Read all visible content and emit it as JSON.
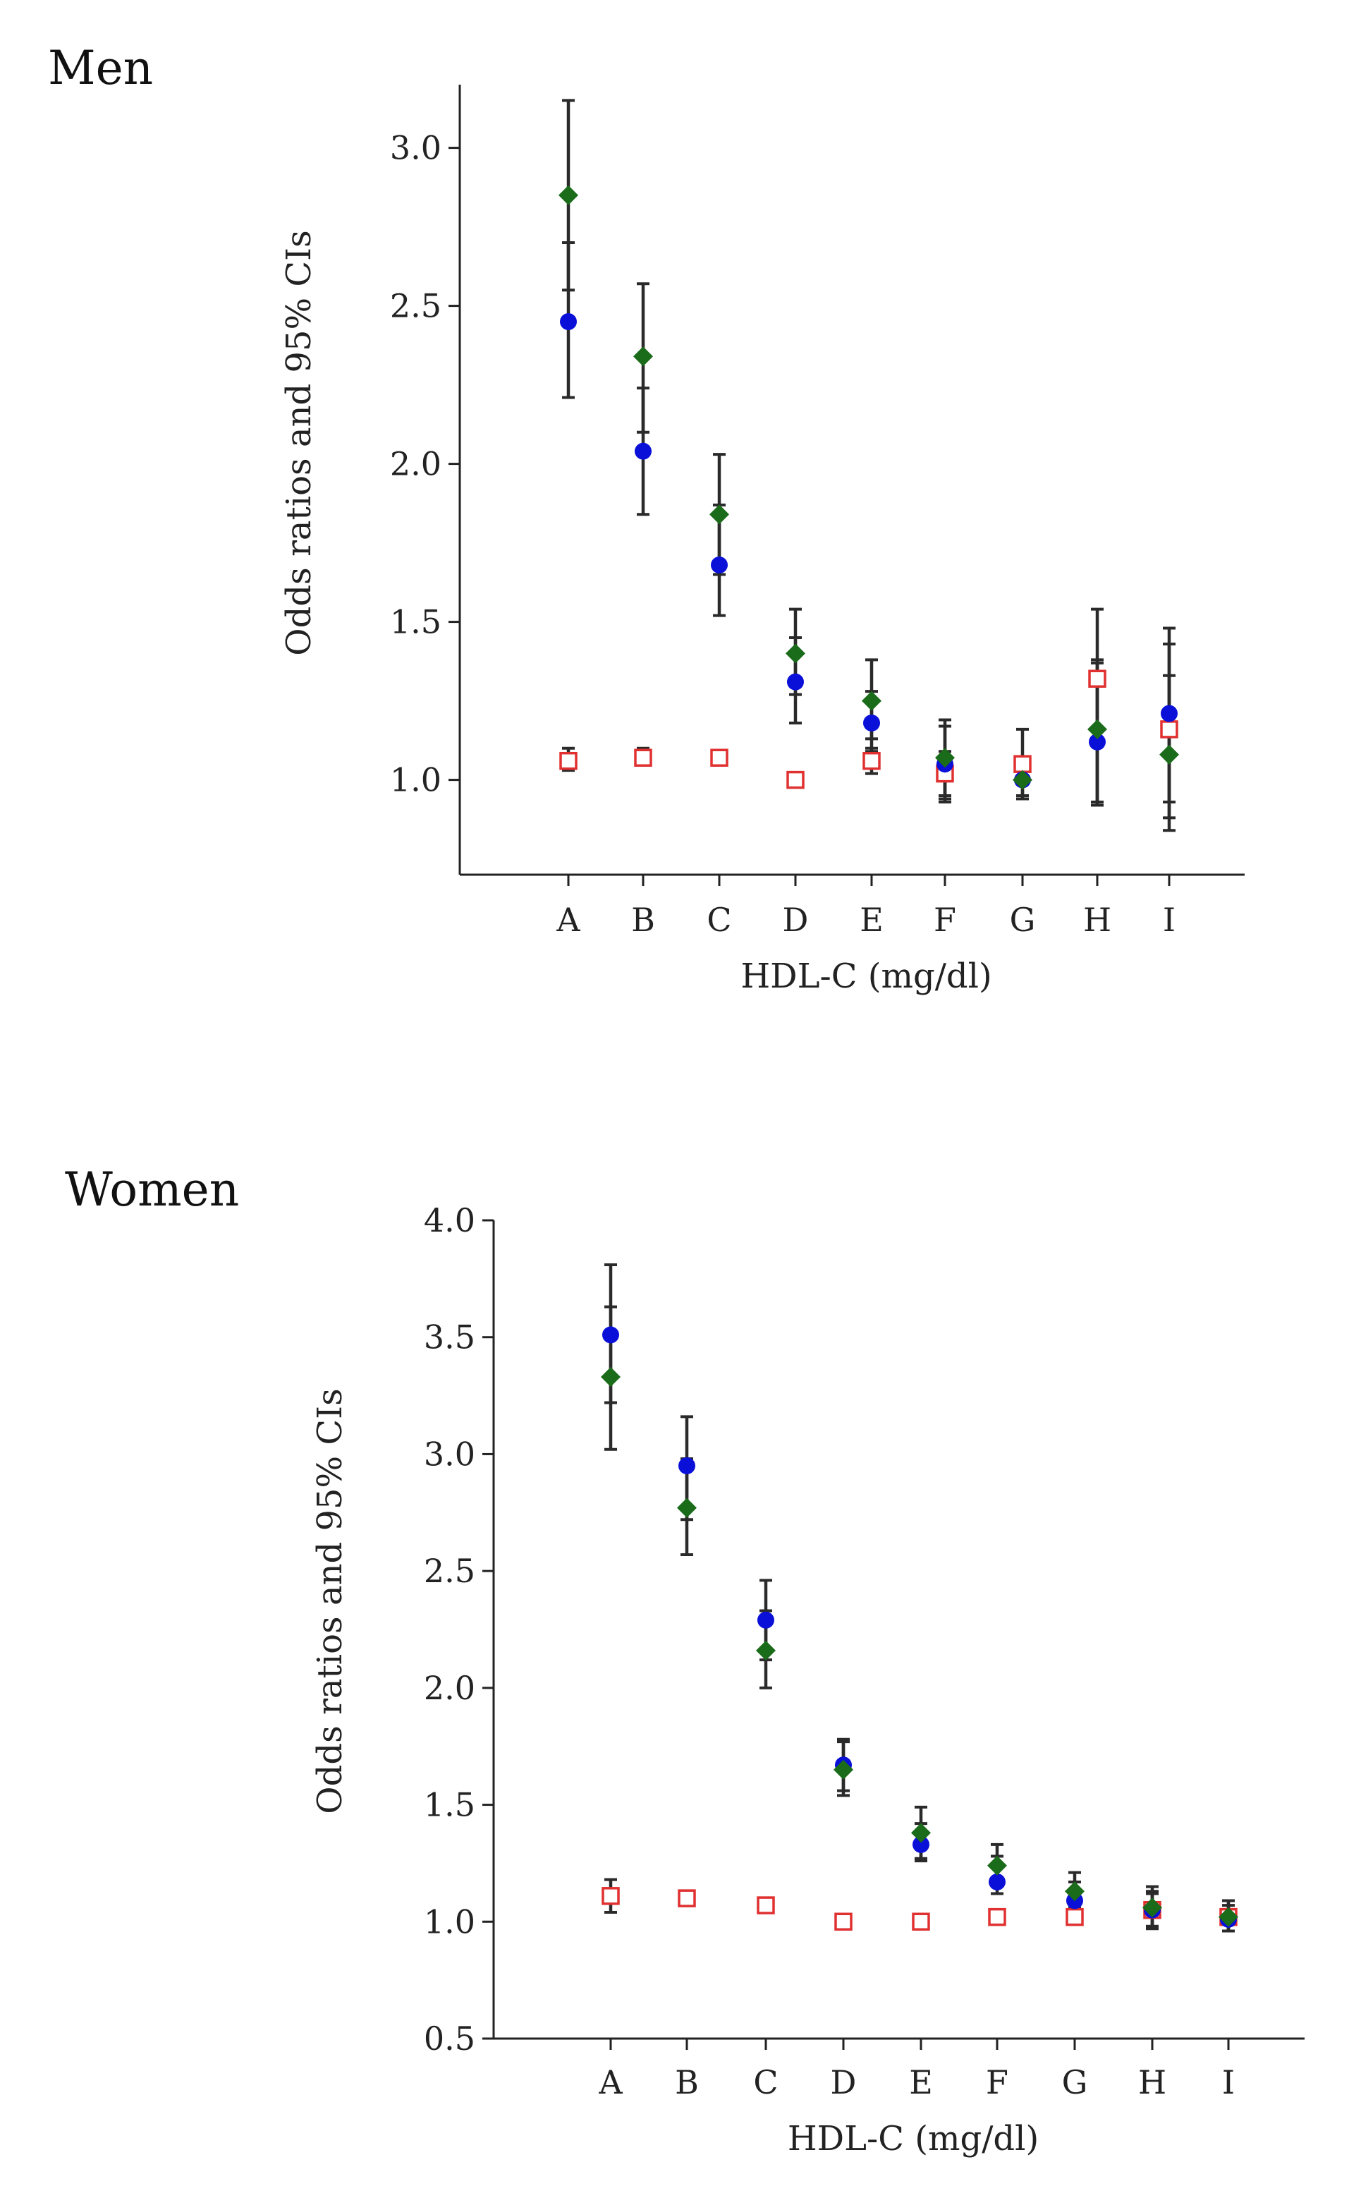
{
  "colors": {
    "series_circle": "#0a10d8",
    "series_diamond": "#1a6b1a",
    "series_square": "#e03030"
  },
  "chart_data": [
    {
      "type": "scatter",
      "title": "Men",
      "xlabel": "HDL-C (mg/dl)",
      "ylabel": "Odds ratios and 95% CIs",
      "categories": [
        "A",
        "B",
        "C",
        "D",
        "E",
        "F",
        "G",
        "H",
        "I"
      ],
      "ylim": [
        0.7,
        3.2
      ],
      "yticks": [
        "1.0",
        "1.5",
        "2.0",
        "2.5",
        "3.0"
      ],
      "series": [
        {
          "name": "circle",
          "marker": "circle",
          "values": [
            2.45,
            2.04,
            1.68,
            1.31,
            1.18,
            1.05,
            1.0,
            1.12,
            1.21
          ],
          "lower": [
            2.21,
            1.84,
            1.52,
            1.18,
            1.09,
            0.94,
            0.95,
            0.92,
            0.93
          ],
          "upper": [
            2.7,
            2.24,
            1.87,
            1.45,
            1.28,
            1.17,
            1.06,
            1.37,
            1.43
          ]
        },
        {
          "name": "diamond",
          "marker": "diamond",
          "values": [
            2.85,
            2.34,
            1.84,
            1.4,
            1.25,
            1.07,
            1.0,
            1.16,
            1.08
          ],
          "lower": [
            2.55,
            2.1,
            1.65,
            1.27,
            1.13,
            0.93,
            0.94,
            0.93,
            0.84
          ],
          "upper": [
            3.15,
            2.57,
            2.03,
            1.54,
            1.38,
            1.19,
            1.06,
            1.54,
            1.48
          ]
        },
        {
          "name": "square",
          "marker": "square",
          "values": [
            1.06,
            1.07,
            1.07,
            1.0,
            1.06,
            1.02,
            1.05,
            1.32,
            1.16
          ],
          "lower": [
            1.03,
            1.05,
            1.05,
            1.0,
            1.02,
            0.95,
            0.99,
            0.93,
            0.88
          ],
          "upper": [
            1.1,
            1.1,
            1.09,
            1.0,
            1.1,
            1.09,
            1.16,
            1.38,
            1.33
          ]
        }
      ]
    },
    {
      "type": "scatter",
      "title": "Women",
      "xlabel": "HDL-C (mg/dl)",
      "ylabel": "Odds ratios and 95% CIs",
      "categories": [
        "A",
        "B",
        "C",
        "D",
        "E",
        "F",
        "G",
        "H",
        "I"
      ],
      "ylim": [
        0.5,
        4.0
      ],
      "yticks": [
        "0.5",
        "1.0",
        "1.5",
        "2.0",
        "2.5",
        "3.0",
        "3.5",
        "4.0"
      ],
      "series": [
        {
          "name": "circle",
          "marker": "circle",
          "values": [
            3.51,
            2.95,
            2.29,
            1.67,
            1.33,
            1.17,
            1.09,
            1.05,
            1.01
          ],
          "lower": [
            3.22,
            2.72,
            2.12,
            1.56,
            1.26,
            1.12,
            1.04,
            0.98,
            0.96
          ],
          "upper": [
            3.81,
            3.16,
            2.46,
            1.78,
            1.42,
            1.28,
            1.17,
            1.12,
            1.07
          ]
        },
        {
          "name": "diamond",
          "marker": "diamond",
          "values": [
            3.33,
            2.77,
            2.16,
            1.65,
            1.38,
            1.24,
            1.13,
            1.06,
            1.02
          ],
          "lower": [
            3.02,
            2.57,
            2.0,
            1.54,
            1.27,
            1.16,
            1.06,
            0.97,
            0.96
          ],
          "upper": [
            3.63,
            2.98,
            2.33,
            1.77,
            1.49,
            1.33,
            1.21,
            1.15,
            1.09
          ]
        },
        {
          "name": "square",
          "marker": "square",
          "values": [
            1.11,
            1.1,
            1.07,
            1.0,
            1.0,
            1.02,
            1.02,
            1.05,
            1.02
          ],
          "lower": [
            1.04,
            1.07,
            1.05,
            1.0,
            0.98,
            0.99,
            0.99,
            0.98,
            0.96
          ],
          "upper": [
            1.18,
            1.13,
            1.09,
            1.0,
            1.02,
            1.05,
            1.05,
            1.13,
            1.09
          ]
        }
      ]
    }
  ]
}
